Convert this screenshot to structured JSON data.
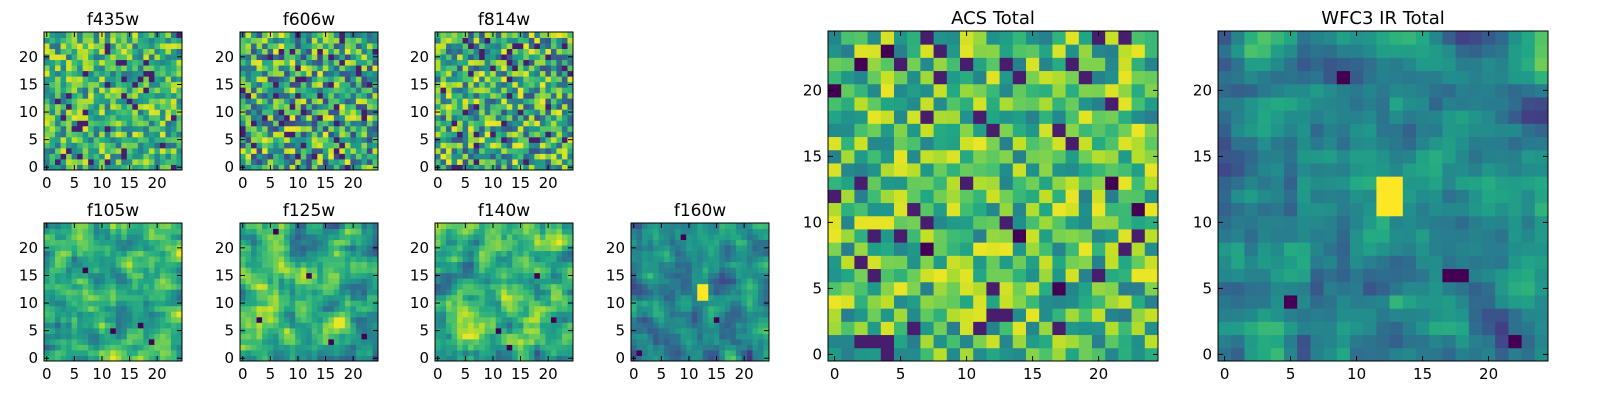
{
  "colormap": "viridis",
  "chart_data": [
    {
      "type": "heatmap",
      "title": "f435w",
      "grid_size": [
        25,
        25
      ],
      "xlim": [
        0,
        24
      ],
      "ylim": [
        0,
        24
      ],
      "xticks": [
        0,
        5,
        10,
        15,
        20
      ],
      "yticks": [
        0,
        5,
        10,
        15,
        20
      ],
      "value_range": [
        0,
        1
      ],
      "texture": "fine noise, mostly green-yellow, few dark pixels",
      "seed": 11,
      "smooth": 0,
      "mean": 0.64,
      "spread": 0.32,
      "specks": [],
      "blob": null
    },
    {
      "type": "heatmap",
      "title": "f606w",
      "grid_size": [
        25,
        25
      ],
      "xlim": [
        0,
        24
      ],
      "ylim": [
        0,
        24
      ],
      "xticks": [
        0,
        5,
        10,
        15,
        20
      ],
      "yticks": [
        0,
        5,
        10,
        15,
        20
      ],
      "value_range": [
        0,
        1
      ],
      "texture": "fine noise with scattered dark pixels",
      "seed": 23,
      "smooth": 0,
      "mean": 0.58,
      "spread": 0.42,
      "specks": [],
      "blob": null
    },
    {
      "type": "heatmap",
      "title": "f814w",
      "grid_size": [
        25,
        25
      ],
      "xlim": [
        0,
        24
      ],
      "ylim": [
        0,
        24
      ],
      "xticks": [
        0,
        5,
        10,
        15,
        20
      ],
      "yticks": [
        0,
        5,
        10,
        15,
        20
      ],
      "value_range": [
        0,
        1
      ],
      "texture": "fine noise with scattered dark pixels",
      "seed": 37,
      "smooth": 0,
      "mean": 0.6,
      "spread": 0.4,
      "specks": [],
      "blob": null
    },
    {
      "type": "heatmap",
      "title": "f105w",
      "grid_size": [
        25,
        25
      ],
      "xlim": [
        0,
        24
      ],
      "ylim": [
        0,
        24
      ],
      "xticks": [
        0,
        5,
        10,
        15,
        20
      ],
      "yticks": [
        0,
        5,
        10,
        15,
        20
      ],
      "value_range": [
        0,
        1
      ],
      "texture": "smooth patches, dark specks",
      "seed": 41,
      "smooth": 1,
      "mean": 0.66,
      "spread": 0.34,
      "specks": [
        [
          7,
          16
        ],
        [
          12,
          5
        ],
        [
          17,
          6
        ],
        [
          19,
          3
        ]
      ],
      "blob": null
    },
    {
      "type": "heatmap",
      "title": "f125w",
      "grid_size": [
        25,
        25
      ],
      "xlim": [
        0,
        24
      ],
      "ylim": [
        0,
        24
      ],
      "xticks": [
        0,
        5,
        10,
        15,
        20
      ],
      "yticks": [
        0,
        5,
        10,
        15,
        20
      ],
      "value_range": [
        0,
        1
      ],
      "texture": "smooth patches, dark specks",
      "seed": 53,
      "smooth": 1,
      "mean": 0.6,
      "spread": 0.4,
      "specks": [
        [
          6,
          23
        ],
        [
          12,
          15
        ],
        [
          3,
          7
        ],
        [
          16,
          3
        ],
        [
          22,
          4
        ]
      ],
      "blob": null
    },
    {
      "type": "heatmap",
      "title": "f140w",
      "grid_size": [
        25,
        25
      ],
      "xlim": [
        0,
        24
      ],
      "ylim": [
        0,
        24
      ],
      "xticks": [
        0,
        5,
        10,
        15,
        20
      ],
      "yticks": [
        0,
        5,
        10,
        15,
        20
      ],
      "value_range": [
        0,
        1
      ],
      "texture": "smooth patches, dark specks",
      "seed": 67,
      "smooth": 1,
      "mean": 0.63,
      "spread": 0.37,
      "specks": [
        [
          11,
          5
        ],
        [
          18,
          15
        ],
        [
          13,
          2
        ],
        [
          21,
          7
        ]
      ],
      "blob": null
    },
    {
      "type": "heatmap",
      "title": "f160w",
      "grid_size": [
        25,
        25
      ],
      "xlim": [
        0,
        24
      ],
      "ylim": [
        0,
        24
      ],
      "xticks": [
        0,
        5,
        10,
        15,
        20
      ],
      "yticks": [
        0,
        5,
        10,
        15,
        20
      ],
      "value_range": [
        0,
        1
      ],
      "texture": "smooth, mostly teal, bright source near center",
      "seed": 79,
      "smooth": 1,
      "mean": 0.45,
      "spread": 0.3,
      "specks": [
        [
          9,
          22
        ],
        [
          1,
          1
        ],
        [
          15,
          7
        ]
      ],
      "blob": [
        12,
        11
      ]
    },
    {
      "type": "heatmap",
      "title": "ACS Total",
      "grid_size": [
        25,
        25
      ],
      "xlim": [
        0,
        24
      ],
      "ylim": [
        0,
        24
      ],
      "xticks": [
        0,
        5,
        10,
        15,
        20
      ],
      "yticks": [
        0,
        5,
        10,
        15,
        20
      ],
      "value_range": [
        0,
        1
      ],
      "texture": "blocky noise, green-yellow, scattered dark pixels",
      "seed": 97,
      "smooth": 0,
      "mean": 0.68,
      "spread": 0.3,
      "specks": [
        [
          0,
          20
        ],
        [
          2,
          22
        ],
        [
          4,
          23
        ],
        [
          7,
          8
        ],
        [
          14,
          9
        ],
        [
          17,
          5
        ],
        [
          21,
          13
        ],
        [
          23,
          11
        ]
      ],
      "blob": null
    },
    {
      "type": "heatmap",
      "title": "WFC3 IR Total",
      "grid_size": [
        25,
        25
      ],
      "xlim": [
        0,
        24
      ],
      "ylim": [
        0,
        24
      ],
      "xticks": [
        0,
        5,
        10,
        15,
        20
      ],
      "yticks": [
        0,
        5,
        10,
        15,
        20
      ],
      "value_range": [
        0,
        1
      ],
      "texture": "blocky, mostly teal, bright source near center",
      "seed": 113,
      "smooth": 1,
      "mean": 0.48,
      "spread": 0.3,
      "specks": [
        [
          9,
          21
        ],
        [
          17,
          6
        ],
        [
          18,
          6
        ],
        [
          22,
          1
        ],
        [
          5,
          4
        ]
      ],
      "blob": [
        12,
        11
      ]
    }
  ]
}
